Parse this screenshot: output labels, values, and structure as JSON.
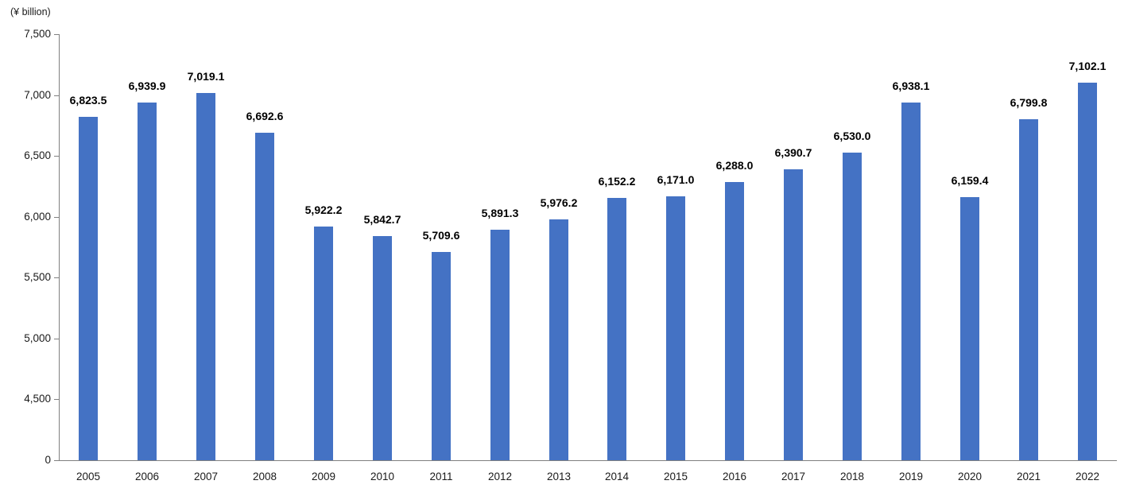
{
  "chart_data": {
    "type": "bar",
    "title": "",
    "unit_label": "(¥ billion)",
    "categories": [
      "2005",
      "2006",
      "2007",
      "2008",
      "2009",
      "2010",
      "2011",
      "2012",
      "2013",
      "2014",
      "2015",
      "2016",
      "2017",
      "2018",
      "2019",
      "2020",
      "2021",
      "2022"
    ],
    "values": [
      6823.5,
      6939.9,
      7019.1,
      6692.6,
      5922.2,
      5842.7,
      5709.6,
      5891.3,
      5976.2,
      6152.2,
      6171.0,
      6288.0,
      6390.7,
      6530.0,
      6938.1,
      6159.4,
      6799.8,
      7102.1
    ],
    "value_labels": [
      "6,823.5",
      "6,939.9",
      "7,019.1",
      "6,692.6",
      "5,922.2",
      "5,842.7",
      "5,709.6",
      "5,891.3",
      "5,976.2",
      "6,152.2",
      "6,171.0",
      "6,288.0",
      "6,390.7",
      "6,530.0",
      "6,938.1",
      "6,159.4",
      "6,799.8",
      "7,102.1"
    ],
    "y_tick_labels": [
      "7,500",
      "7,000",
      "6,500",
      "6,000",
      "5,500",
      "5,000",
      "4,500",
      "0"
    ],
    "y_tick_values": [
      7500,
      7000,
      6500,
      6000,
      5500,
      5000,
      4500,
      0
    ],
    "ylim": [
      0,
      7500
    ],
    "y_axis_break": "axis compressed between 0 and 4,500 (bottom interval equals one 500-unit step)",
    "grid": false,
    "legend": false,
    "bar_color": "#4472C4",
    "axis_color": "#808080",
    "text_color": "#1a1a1a",
    "data_label_color": "#000000"
  }
}
